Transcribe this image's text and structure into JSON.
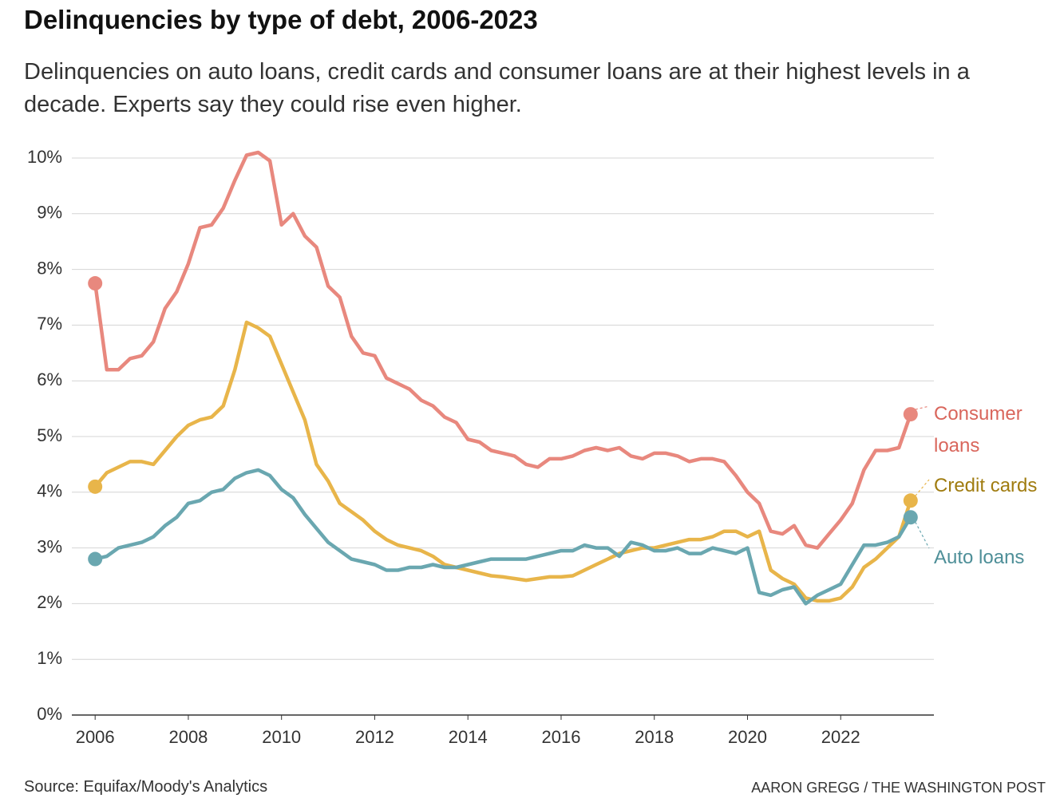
{
  "chart_data": {
    "type": "line",
    "title": "Delinquencies by type of debt, 2006-2023",
    "subtitle": "Delinquencies on auto loans, credit cards and consumer loans are at their highest levels in a decade. Experts say they could rise even higher.",
    "source": "Source: Equifax/Moody's Analytics",
    "credit": "AARON GREGG / THE WASHINGTON POST",
    "x": [
      2006,
      2006.25,
      2006.5,
      2006.75,
      2007,
      2007.25,
      2007.5,
      2007.75,
      2008,
      2008.25,
      2008.5,
      2008.75,
      2009,
      2009.25,
      2009.5,
      2009.75,
      2010,
      2010.25,
      2010.5,
      2010.75,
      2011,
      2011.25,
      2011.5,
      2011.75,
      2012,
      2012.25,
      2012.5,
      2012.75,
      2013,
      2013.25,
      2013.5,
      2013.75,
      2014,
      2014.25,
      2014.5,
      2014.75,
      2015,
      2015.25,
      2015.5,
      2015.75,
      2016,
      2016.25,
      2016.5,
      2016.75,
      2017,
      2017.25,
      2017.5,
      2017.75,
      2018,
      2018.25,
      2018.5,
      2018.75,
      2019,
      2019.25,
      2019.5,
      2019.75,
      2020,
      2020.25,
      2020.5,
      2020.75,
      2021,
      2021.25,
      2021.5,
      2021.75,
      2022,
      2022.25,
      2022.5,
      2022.75,
      2023,
      2023.25,
      2023.5
    ],
    "series": [
      {
        "name": "Credit cards",
        "color": "#e8b54a",
        "label_color": "#a07c10",
        "values": [
          4.1,
          4.35,
          4.45,
          4.55,
          4.55,
          4.5,
          4.75,
          5.0,
          5.2,
          5.3,
          5.35,
          5.55,
          6.2,
          7.05,
          6.95,
          6.8,
          6.3,
          5.8,
          5.3,
          4.5,
          4.2,
          3.8,
          3.65,
          3.5,
          3.3,
          3.15,
          3.05,
          3.0,
          2.95,
          2.85,
          2.7,
          2.65,
          2.6,
          2.55,
          2.5,
          2.48,
          2.45,
          2.42,
          2.45,
          2.48,
          2.48,
          2.5,
          2.6,
          2.7,
          2.8,
          2.9,
          2.95,
          3.0,
          3.0,
          3.05,
          3.1,
          3.15,
          3.15,
          3.2,
          3.3,
          3.3,
          3.2,
          3.3,
          2.6,
          2.45,
          2.35,
          2.1,
          2.05,
          2.05,
          2.1,
          2.3,
          2.65,
          2.8,
          3.0,
          3.2,
          3.85
        ]
      },
      {
        "name": "Auto loans",
        "color": "#6aa7b0",
        "label_color": "#4e8f98",
        "values": [
          2.8,
          2.85,
          3.0,
          3.05,
          3.1,
          3.2,
          3.4,
          3.55,
          3.8,
          3.85,
          4.0,
          4.05,
          4.25,
          4.35,
          4.4,
          4.3,
          4.05,
          3.9,
          3.6,
          3.35,
          3.1,
          2.95,
          2.8,
          2.75,
          2.7,
          2.6,
          2.6,
          2.65,
          2.65,
          2.7,
          2.65,
          2.65,
          2.7,
          2.75,
          2.8,
          2.8,
          2.8,
          2.8,
          2.85,
          2.9,
          2.95,
          2.95,
          3.05,
          3.0,
          3.0,
          2.85,
          3.1,
          3.05,
          2.95,
          2.95,
          3.0,
          2.9,
          2.9,
          3.0,
          2.95,
          2.9,
          3.0,
          2.2,
          2.15,
          2.25,
          2.3,
          2.0,
          2.15,
          2.25,
          2.35,
          2.7,
          3.05,
          3.05,
          3.1,
          3.2,
          3.55
        ]
      },
      {
        "name": "Consumer loans",
        "color": "#e8887e",
        "label_color": "#d9665c",
        "values": [
          7.75,
          6.2,
          6.2,
          6.4,
          6.45,
          6.7,
          7.3,
          7.6,
          8.1,
          8.75,
          8.8,
          9.1,
          9.6,
          10.05,
          10.1,
          9.95,
          8.8,
          9.0,
          8.6,
          8.4,
          7.7,
          7.5,
          6.8,
          6.5,
          6.45,
          6.05,
          5.95,
          5.85,
          5.65,
          5.55,
          5.35,
          5.25,
          4.95,
          4.9,
          4.75,
          4.7,
          4.65,
          4.5,
          4.45,
          4.6,
          4.6,
          4.65,
          4.75,
          4.8,
          4.75,
          4.8,
          4.65,
          4.6,
          4.7,
          4.7,
          4.65,
          4.55,
          4.6,
          4.6,
          4.55,
          4.3,
          4.0,
          3.8,
          3.3,
          3.25,
          3.4,
          3.05,
          3.0,
          3.25,
          3.5,
          3.8,
          4.4,
          4.75,
          4.75,
          4.8,
          5.4
        ]
      }
    ],
    "xlim": [
      2005.5,
      2024
    ],
    "xticks": [
      2006,
      2008,
      2010,
      2012,
      2014,
      2016,
      2018,
      2020,
      2022
    ],
    "ylim": [
      0,
      10
    ],
    "yticks": [
      {
        "value": 0,
        "label": "0%"
      },
      {
        "value": 1,
        "label": "1%"
      },
      {
        "value": 2,
        "label": "2%"
      },
      {
        "value": 3,
        "label": "3%"
      },
      {
        "value": 4,
        "label": "4%"
      },
      {
        "value": 5,
        "label": "5%"
      },
      {
        "value": 6,
        "label": "6%"
      },
      {
        "value": 7,
        "label": "7%"
      },
      {
        "value": 8,
        "label": "8%"
      },
      {
        "value": 9,
        "label": "9%"
      },
      {
        "value": 10,
        "label": "10%"
      }
    ],
    "grid": true
  }
}
